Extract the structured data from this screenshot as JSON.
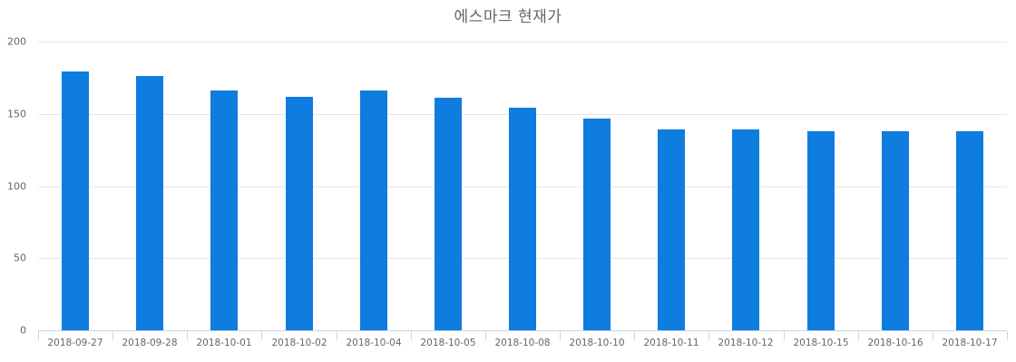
{
  "chart_data": {
    "type": "bar",
    "title": "에스마크 현재가",
    "xlabel": "",
    "ylabel": "",
    "ylim": [
      0,
      200
    ],
    "yticks": [
      0,
      50,
      100,
      150,
      200
    ],
    "grid": true,
    "legend": null,
    "bar_color": "#0f7ce0",
    "categories": [
      "2018-09-27",
      "2018-09-28",
      "2018-10-01",
      "2018-10-02",
      "2018-10-04",
      "2018-10-05",
      "2018-10-08",
      "2018-10-10",
      "2018-10-11",
      "2018-10-12",
      "2018-10-15",
      "2018-10-16",
      "2018-10-17"
    ],
    "values": [
      179,
      176,
      166,
      162,
      166,
      161,
      154,
      147,
      139,
      139,
      138,
      138,
      138
    ]
  },
  "title": "에스마크 현재가",
  "yaxis": {
    "labels": [
      "0",
      "50",
      "100",
      "150",
      "200"
    ]
  },
  "xaxis": {
    "labels": [
      "2018-09-27",
      "2018-09-28",
      "2018-10-01",
      "2018-10-02",
      "2018-10-04",
      "2018-10-05",
      "2018-10-08",
      "2018-10-10",
      "2018-10-11",
      "2018-10-12",
      "2018-10-15",
      "2018-10-16",
      "2018-10-17"
    ]
  }
}
